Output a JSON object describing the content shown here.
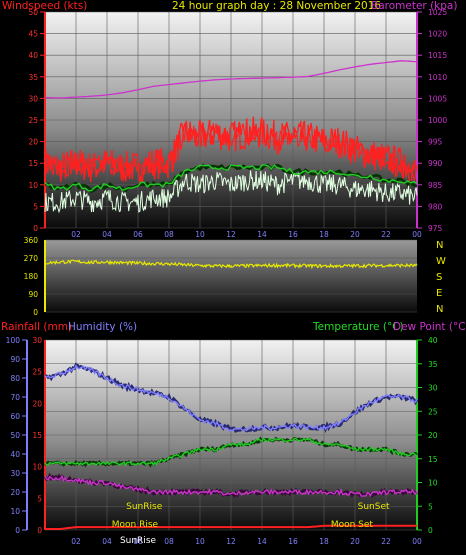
{
  "colors": {
    "wind": "#ff2020",
    "wind_avg": "#22cc22",
    "wind_gust_low": "#e0ffe0",
    "baro": "#cc33cc",
    "direction": "#e8e800",
    "rain": "#ff2020",
    "humidity": "#8080ff",
    "temp": "#22cc22",
    "dew": "#cc33cc",
    "label_green": "#22dd22",
    "label_yellow": "#e8e800"
  },
  "chart_data": [
    {
      "type": "line",
      "title": "24 hour graph day : 28 November 2016",
      "left_label": "Windspeed (kts)",
      "right_label": "Barometer (kpa)",
      "x_ticks": [
        "02",
        "04",
        "06",
        "08",
        "10",
        "12",
        "14",
        "16",
        "18",
        "20",
        "22",
        "00"
      ],
      "y_ticks": [
        "0",
        "5",
        "10",
        "15",
        "20",
        "25",
        "30",
        "35",
        "40",
        "45",
        "50"
      ],
      "ylim": [
        0,
        50
      ],
      "y2_ticks": [
        "975",
        "980",
        "985",
        "990",
        "995",
        "1000",
        "1005",
        "1010",
        "1015",
        "1020",
        "1025"
      ],
      "y2lim": [
        975,
        1025
      ],
      "x": [
        0,
        1,
        2,
        3,
        4,
        5,
        6,
        7,
        8,
        9,
        10,
        11,
        12,
        13,
        14,
        15,
        16,
        17,
        18,
        19,
        20,
        21,
        22,
        23,
        24
      ],
      "series": [
        {
          "values": [
            15,
            14,
            15,
            14,
            15,
            14,
            14,
            15,
            15,
            22,
            21,
            22,
            21,
            22,
            22,
            21,
            21,
            21,
            20,
            20,
            18,
            17,
            16,
            15,
            13
          ]
        },
        {
          "values": [
            10,
            9,
            10,
            9,
            10,
            9,
            10,
            10,
            10,
            13,
            14,
            14,
            14,
            14,
            14,
            14,
            13,
            13,
            13,
            13,
            12,
            12,
            11,
            11,
            10
          ]
        },
        {
          "values": [
            6,
            6,
            7,
            6,
            7,
            6,
            6,
            7,
            7,
            11,
            10,
            11,
            10,
            11,
            11,
            10,
            11,
            11,
            10,
            10,
            9,
            9,
            8,
            8,
            7
          ]
        },
        {
          "values": [
            1005.2,
            1005.1,
            1005.3,
            1005.5,
            1005.8,
            1006.3,
            1007.0,
            1007.8,
            1008.2,
            1008.6,
            1009.0,
            1009.3,
            1009.5,
            1009.6,
            1009.7,
            1009.8,
            1009.9,
            1010.1,
            1010.8,
            1011.6,
            1012.3,
            1012.9,
            1013.3,
            1013.7,
            1013.5
          ]
        }
      ]
    },
    {
      "type": "line",
      "y_ticks": [
        "360",
        "270",
        "180",
        "90",
        "0"
      ],
      "ylim": [
        0,
        360
      ],
      "compass": [
        "N",
        "W",
        "S",
        "E",
        "N"
      ],
      "x": [
        0,
        1,
        2,
        3,
        4,
        5,
        6,
        7,
        8,
        9,
        10,
        11,
        12,
        13,
        14,
        15,
        16,
        17,
        18,
        19,
        20,
        21,
        22,
        23,
        24
      ],
      "series": [
        {
          "values": [
            245,
            250,
            252,
            248,
            250,
            246,
            244,
            242,
            240,
            236,
            232,
            230,
            230,
            231,
            232,
            233,
            232,
            231,
            230,
            230,
            231,
            232,
            233,
            233,
            232
          ]
        }
      ]
    },
    {
      "type": "line",
      "rain_label": "Rainfall (mm)",
      "humidity_label": "Humidity (%)",
      "temp_label": "Temperature (°C)",
      "dew_label": "Dew Point (°C)",
      "x_ticks": [
        "02",
        "04",
        "06",
        "08",
        "10",
        "12",
        "14",
        "16",
        "18",
        "20",
        "22",
        "00"
      ],
      "humidity_ticks": [
        "0",
        "10",
        "20",
        "30",
        "40",
        "50",
        "60",
        "70",
        "80",
        "90",
        "100"
      ],
      "rain_ticks": [
        "0",
        "5",
        "10",
        "15",
        "20",
        "25",
        "30"
      ],
      "temp_ticks": [
        "0",
        "5",
        "10",
        "15",
        "20",
        "25",
        "30",
        "35",
        "40"
      ],
      "humidity_lim": [
        0,
        100
      ],
      "temp_lim": [
        0,
        40
      ],
      "x": [
        0,
        1,
        2,
        3,
        4,
        5,
        6,
        7,
        8,
        9,
        10,
        11,
        12,
        13,
        14,
        15,
        16,
        17,
        18,
        19,
        20,
        21,
        22,
        23,
        24
      ],
      "series": [
        {
          "values": [
            80,
            82,
            86,
            84,
            80,
            76,
            74,
            72,
            70,
            64,
            58,
            56,
            53,
            53,
            54,
            54,
            55,
            54,
            54,
            56,
            62,
            67,
            70,
            70,
            68
          ]
        },
        {
          "values": [
            14,
            14,
            14,
            14,
            14,
            14,
            14,
            14,
            15,
            16,
            17,
            17,
            18,
            18,
            19,
            19,
            19,
            19,
            18,
            18,
            17,
            17,
            17,
            16,
            16
          ]
        },
        {
          "values": [
            11,
            11,
            10.5,
            10,
            10,
            9,
            8.5,
            8,
            8,
            8,
            8,
            8,
            7.5,
            8,
            8,
            8,
            8,
            8,
            8,
            8,
            7.5,
            7.5,
            8,
            8,
            8
          ]
        },
        {
          "values": [
            0,
            0,
            0.3,
            0.3,
            0.3,
            0.3,
            0.3,
            0.3,
            0.3,
            0.3,
            0.3,
            0.3,
            0.3,
            0.3,
            0.3,
            0.3,
            0.3,
            0.3,
            0.5,
            0.5,
            0.5,
            0.5,
            0.5,
            0.5,
            0.5
          ]
        }
      ],
      "annotations": [
        {
          "text": "SunRise",
          "x": 6.4
        },
        {
          "text": "SunSet",
          "x": 21.2
        },
        {
          "text": "Moon Rise",
          "x": 5.8
        },
        {
          "text": "Moon Set",
          "x": 19.8
        },
        {
          "text": "SunRise",
          "x": 6.0
        }
      ]
    }
  ]
}
